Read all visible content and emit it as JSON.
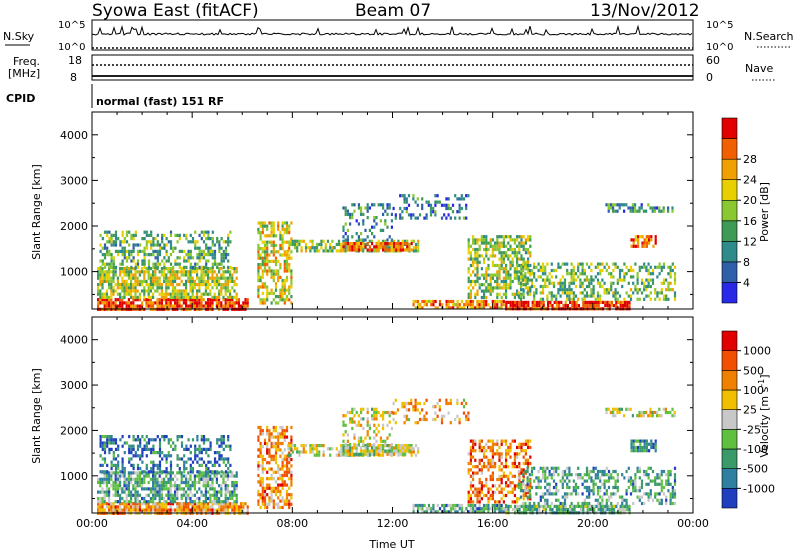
{
  "header": {
    "station": "Syowa East (fitACF)",
    "beam": "Beam 07",
    "date": "13/Nov/2012"
  },
  "status_panels": {
    "nsky_label": "N.Sky",
    "nsearch_label": "N.Search",
    "noise_ticks": [
      "10^5",
      "10^0"
    ],
    "freq_label": "Freq.",
    "freq_unit": "[MHz]",
    "freq_ticks": [
      "18",
      "8"
    ],
    "nave_label": "Nave",
    "nave_ticks": [
      "60",
      "0"
    ],
    "cpid_label": "CPID",
    "cpid_value": "normal (fast) 151 RF"
  },
  "chart_data": [
    {
      "type": "heatmap",
      "name": "Power",
      "ylabel": "Slant Range [km]",
      "xlabel": "",
      "x_range_hours": [
        0,
        24
      ],
      "y_range_km": [
        180,
        4500
      ],
      "y_ticks": [
        "1000",
        "2000",
        "3000",
        "4000"
      ],
      "colorbar_label": "Power [dB]",
      "colorbar_ticks": [
        "4",
        "8",
        "12",
        "16",
        "20",
        "24",
        "28"
      ],
      "colorbar_colors": [
        "#2828e6",
        "#2e5fa8",
        "#2f8a8a",
        "#3f9a55",
        "#8ac832",
        "#e8d000",
        "#f0a000",
        "#f06000",
        "#e00000"
      ],
      "echo_regions": [
        {
          "t0": 0.2,
          "t1": 6.2,
          "r0": 190,
          "r1": 420,
          "level": 0.9,
          "density": 0.85
        },
        {
          "t0": 0.2,
          "t1": 5.8,
          "r0": 420,
          "r1": 1100,
          "level": 0.55,
          "density": 0.7
        },
        {
          "t0": 0.3,
          "t1": 5.5,
          "r0": 1100,
          "r1": 1900,
          "level": 0.4,
          "density": 0.45
        },
        {
          "t0": 6.6,
          "t1": 8.0,
          "r0": 300,
          "r1": 2100,
          "level": 0.6,
          "density": 0.55
        },
        {
          "t0": 7.8,
          "t1": 13.0,
          "r0": 1450,
          "r1": 1700,
          "level": 0.5,
          "density": 0.6
        },
        {
          "t0": 10.0,
          "t1": 12.8,
          "r0": 1500,
          "r1": 1650,
          "level": 0.85,
          "density": 0.8
        },
        {
          "t0": 10.0,
          "t1": 12.0,
          "r0": 1700,
          "r1": 2500,
          "level": 0.3,
          "density": 0.35
        },
        {
          "t0": 12.0,
          "t1": 15.0,
          "r0": 2200,
          "r1": 2700,
          "level": 0.25,
          "density": 0.3
        },
        {
          "t0": 12.8,
          "t1": 16.5,
          "r0": 200,
          "r1": 380,
          "level": 0.75,
          "density": 0.75
        },
        {
          "t0": 15.0,
          "t1": 17.5,
          "r0": 400,
          "r1": 1800,
          "level": 0.5,
          "density": 0.55
        },
        {
          "t0": 16.5,
          "t1": 21.5,
          "r0": 190,
          "r1": 360,
          "level": 0.95,
          "density": 0.85
        },
        {
          "t0": 17.0,
          "t1": 23.3,
          "r0": 380,
          "r1": 1200,
          "level": 0.45,
          "density": 0.45
        },
        {
          "t0": 21.5,
          "t1": 22.5,
          "r0": 1550,
          "r1": 1800,
          "level": 0.8,
          "density": 0.7
        },
        {
          "t0": 20.5,
          "t1": 23.3,
          "r0": 2300,
          "r1": 2500,
          "level": 0.3,
          "density": 0.5
        }
      ]
    },
    {
      "type": "heatmap",
      "name": "Velocity",
      "ylabel": "Slant Range [km]",
      "xlabel": "Time UT",
      "x_range_hours": [
        0,
        24
      ],
      "x_ticks": [
        "00:00",
        "04:00",
        "08:00",
        "12:00",
        "16:00",
        "20:00",
        "00:00"
      ],
      "y_range_km": [
        180,
        4500
      ],
      "y_ticks": [
        "1000",
        "2000",
        "3000",
        "4000"
      ],
      "colorbar_label": "Velocity [m s",
      "colorbar_label_sup": "-1",
      "colorbar_ticks": [
        "1000",
        "500",
        "100",
        "25",
        "-25",
        "-100",
        "-500",
        "-1000"
      ],
      "colorbar_colors": [
        "#1f3fbf",
        "#2e7fa0",
        "#3a9a6a",
        "#5fc040",
        "#c8c8c8",
        "#f0c000",
        "#f08000",
        "#f05000",
        "#e00000"
      ],
      "echo_regions": [
        {
          "t0": 0.2,
          "t1": 6.2,
          "r0": 190,
          "r1": 420,
          "level": 0.7,
          "density": 0.85
        },
        {
          "t0": 0.2,
          "t1": 5.8,
          "r0": 420,
          "r1": 1100,
          "level": 0.3,
          "density": 0.7
        },
        {
          "t0": 0.3,
          "t1": 5.5,
          "r0": 1100,
          "r1": 1900,
          "level": 0.15,
          "density": 0.45
        },
        {
          "t0": 6.6,
          "t1": 8.0,
          "r0": 300,
          "r1": 2100,
          "level": 0.7,
          "density": 0.55
        },
        {
          "t0": 7.8,
          "t1": 13.0,
          "r0": 1450,
          "r1": 1700,
          "level": 0.5,
          "density": 0.6
        },
        {
          "t0": 10.0,
          "t1": 12.8,
          "r0": 1500,
          "r1": 1650,
          "level": 0.5,
          "density": 0.8
        },
        {
          "t0": 10.0,
          "t1": 12.0,
          "r0": 1700,
          "r1": 2500,
          "level": 0.55,
          "density": 0.35
        },
        {
          "t0": 12.0,
          "t1": 15.0,
          "r0": 2200,
          "r1": 2700,
          "level": 0.65,
          "density": 0.3
        },
        {
          "t0": 12.8,
          "t1": 16.5,
          "r0": 200,
          "r1": 380,
          "level": 0.3,
          "density": 0.75
        },
        {
          "t0": 15.0,
          "t1": 17.5,
          "r0": 400,
          "r1": 1800,
          "level": 0.75,
          "density": 0.55
        },
        {
          "t0": 16.5,
          "t1": 21.5,
          "r0": 190,
          "r1": 360,
          "level": 0.35,
          "density": 0.85
        },
        {
          "t0": 17.0,
          "t1": 23.3,
          "r0": 380,
          "r1": 1200,
          "level": 0.3,
          "density": 0.45
        },
        {
          "t0": 21.5,
          "t1": 22.5,
          "r0": 1550,
          "r1": 1800,
          "level": 0.2,
          "density": 0.7
        },
        {
          "t0": 20.5,
          "t1": 23.3,
          "r0": 2300,
          "r1": 2500,
          "level": 0.5,
          "density": 0.5
        }
      ]
    }
  ]
}
